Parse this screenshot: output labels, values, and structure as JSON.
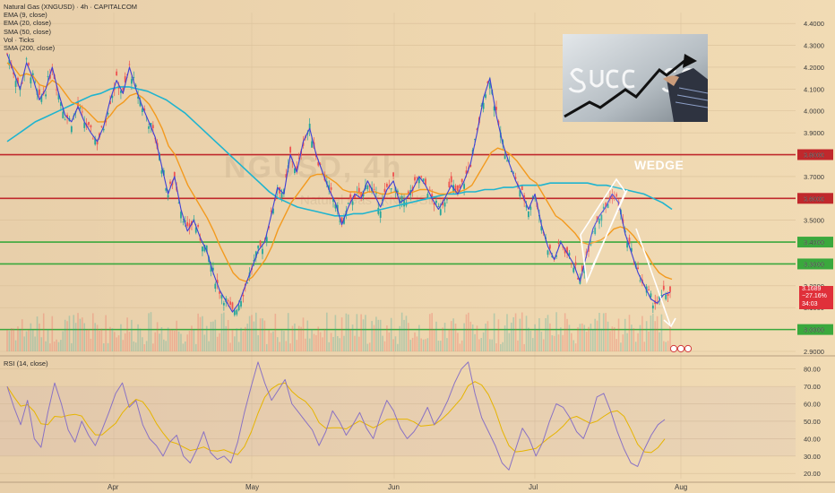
{
  "header": {
    "instrument": "Natural Gas (XNGUSD) · 4h · CAPITALCOM",
    "indicators": [
      "EMA (9, close)",
      "EMA (20, close)",
      "SMA (50, close)",
      "Vol · Ticks",
      "SMA (200, close)"
    ],
    "rsi_title": "RSI (14, close)"
  },
  "annotation": {
    "pattern": "WEDGE"
  },
  "watermark": {
    "main": "NGUSD, 4h",
    "sub": "Natural Gas (XNGUSD)"
  },
  "price_tag": {
    "price": "3.1689",
    "change": "−27.16%",
    "countdown": "34:03"
  },
  "colors": {
    "background": "#ecd3ac",
    "price_ema9": "#3f3fd6",
    "ema20": "#f39a1e",
    "sma50": "#1fb4cf",
    "candle_up": "#26a69a",
    "candle_down": "#ef5350",
    "resistance": "#c0282c",
    "support": "#3aa83d",
    "rsi_line": "#8a72c4",
    "rsi_ma": "#e6b400",
    "tag": "#e0303a"
  },
  "chart_data": [
    {
      "type": "line",
      "title": "Natural Gas (XNGUSD) · 4h · CAPITALCOM",
      "xlabel": "",
      "ylabel": "",
      "x_ticks": [
        "Apr",
        "May",
        "Jun",
        "Jul",
        "Aug"
      ],
      "y_ticks": [
        "4.4000",
        "4.3000",
        "4.2000",
        "4.1000",
        "4.0000",
        "3.9000",
        "3.8000",
        "3.7000",
        "3.6000",
        "3.5000",
        "3.4000",
        "3.3000",
        "3.2000",
        "3.1000",
        "3.0000",
        "2.9000"
      ],
      "ylim": [
        2.9,
        4.45
      ],
      "horizontal_levels": [
        {
          "label": "3.8000",
          "value": 3.8,
          "color": "#c0282c"
        },
        {
          "label": "3.6000",
          "value": 3.6,
          "color": "#c0282c"
        },
        {
          "label": "3.4000",
          "value": 3.4,
          "color": "#3aa83d"
        },
        {
          "label": "3.3000",
          "value": 3.3,
          "color": "#3aa83d"
        },
        {
          "label": "3.0000",
          "value": 3.0,
          "color": "#3aa83d"
        }
      ],
      "series": [
        {
          "values": [
            4.26,
            4.18,
            4.1,
            4.22,
            4.15,
            4.05,
            4.1,
            4.2,
            4.08,
            3.98,
            3.95,
            4.02,
            3.95,
            3.9,
            3.86,
            3.93,
            4.05,
            4.14,
            4.08,
            4.2,
            4.1,
            4.02,
            3.95,
            3.88,
            3.75,
            3.62,
            3.7,
            3.55,
            3.45,
            3.5,
            3.42,
            3.36,
            3.26,
            3.18,
            3.13,
            3.08,
            3.12,
            3.2,
            3.28,
            3.36,
            3.4,
            3.52,
            3.65,
            3.62,
            3.8,
            3.72,
            3.86,
            3.92,
            3.8,
            3.72,
            3.64,
            3.58,
            3.48,
            3.56,
            3.62,
            3.6,
            3.68,
            3.62,
            3.56,
            3.64,
            3.68,
            3.58,
            3.6,
            3.64,
            3.7,
            3.66,
            3.6,
            3.55,
            3.6,
            3.66,
            3.62,
            3.68,
            3.76,
            3.9,
            4.06,
            4.15,
            3.98,
            3.85,
            3.76,
            3.68,
            3.62,
            3.55,
            3.62,
            3.48,
            3.38,
            3.32,
            3.4,
            3.35,
            3.3,
            3.22,
            3.34,
            3.46,
            3.52,
            3.56,
            3.62,
            3.58,
            3.44,
            3.35,
            3.26,
            3.2,
            3.14,
            3.12,
            3.16,
            3.17
          ]
        },
        {
          "values": [
            4.22,
            4.2,
            4.16,
            4.17,
            4.16,
            4.12,
            4.11,
            4.14,
            4.12,
            4.08,
            4.04,
            4.03,
            4.01,
            3.98,
            3.95,
            3.95,
            3.98,
            4.02,
            4.04,
            4.07,
            4.08,
            4.06,
            4.03,
            3.98,
            3.92,
            3.84,
            3.8,
            3.73,
            3.66,
            3.61,
            3.56,
            3.51,
            3.45,
            3.38,
            3.32,
            3.26,
            3.23,
            3.22,
            3.24,
            3.28,
            3.32,
            3.38,
            3.46,
            3.52,
            3.58,
            3.62,
            3.66,
            3.7,
            3.71,
            3.71,
            3.69,
            3.67,
            3.64,
            3.63,
            3.63,
            3.62,
            3.63,
            3.63,
            3.62,
            3.62,
            3.63,
            3.62,
            3.62,
            3.63,
            3.64,
            3.64,
            3.63,
            3.62,
            3.62,
            3.63,
            3.63,
            3.64,
            3.66,
            3.71,
            3.76,
            3.81,
            3.83,
            3.82,
            3.8,
            3.77,
            3.73,
            3.69,
            3.67,
            3.62,
            3.57,
            3.52,
            3.5,
            3.47,
            3.44,
            3.4,
            3.39,
            3.4,
            3.41,
            3.43,
            3.46,
            3.47,
            3.46,
            3.43,
            3.39,
            3.35,
            3.3,
            3.26,
            3.24,
            3.23
          ]
        },
        {
          "values": [
            3.86,
            3.89,
            3.92,
            3.95,
            3.97,
            3.99,
            4.01,
            4.03,
            4.05,
            4.07,
            4.08,
            4.1,
            4.11,
            4.11,
            4.1,
            4.09,
            4.07,
            4.05,
            4.02,
            3.99,
            3.95,
            3.91,
            3.87,
            3.83,
            3.79,
            3.75,
            3.71,
            3.67,
            3.63,
            3.6,
            3.58,
            3.56,
            3.55,
            3.54,
            3.53,
            3.52,
            3.52,
            3.53,
            3.53,
            3.54,
            3.55,
            3.56,
            3.57,
            3.58,
            3.59,
            3.6,
            3.61,
            3.62,
            3.62,
            3.63,
            3.63,
            3.64,
            3.64,
            3.65,
            3.65,
            3.66,
            3.66,
            3.66,
            3.67,
            3.67,
            3.67,
            3.67,
            3.67,
            3.66,
            3.66,
            3.65,
            3.64,
            3.63,
            3.62,
            3.6,
            3.58,
            3.55
          ]
        }
      ]
    },
    {
      "type": "line",
      "title": "RSI (14, close)",
      "y_ticks": [
        "80.00",
        "70.00",
        "60.00",
        "50.00",
        "40.00",
        "30.00",
        "20.00"
      ],
      "ylim": [
        17,
        85
      ],
      "series": [
        {
          "values": [
            70,
            58,
            48,
            62,
            40,
            35,
            55,
            72,
            60,
            45,
            38,
            50,
            42,
            36,
            45,
            55,
            66,
            72,
            58,
            62,
            48,
            40,
            36,
            30,
            38,
            42,
            30,
            26,
            34,
            44,
            32,
            28,
            30,
            26,
            38,
            55,
            70,
            84,
            72,
            62,
            68,
            74,
            60,
            55,
            50,
            45,
            36,
            44,
            56,
            50,
            42,
            48,
            55,
            46,
            40,
            52,
            62,
            56,
            46,
            40,
            44,
            50,
            58,
            48,
            54,
            62,
            72,
            80,
            84,
            66,
            52,
            44,
            36,
            26,
            22,
            34,
            46,
            40,
            30,
            38,
            50,
            60,
            58,
            52,
            44,
            40,
            50,
            64,
            66,
            56,
            44,
            34,
            26,
            24,
            34,
            42,
            48,
            51
          ]
        }
      ]
    }
  ]
}
